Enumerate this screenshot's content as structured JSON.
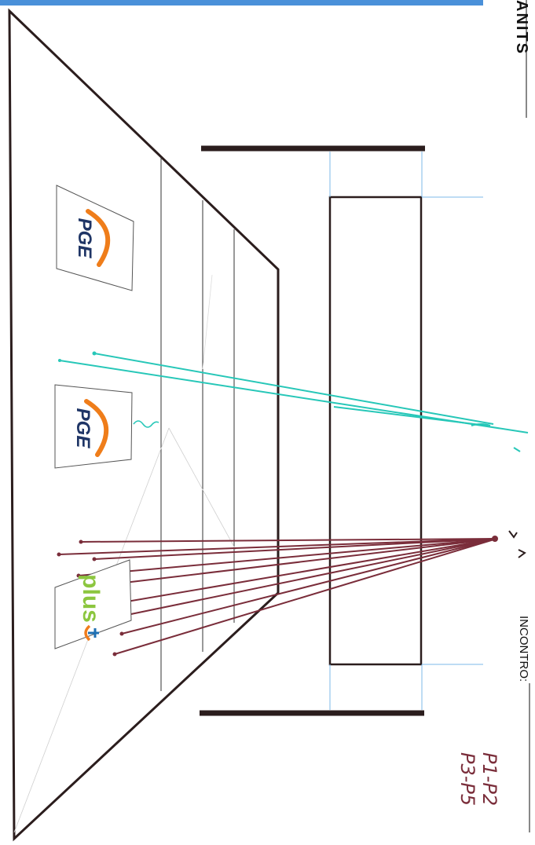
{
  "header_fragment": "ANITS",
  "field_label": "INCONTRO:",
  "handwritten_notes": [
    "P1-P2",
    "P3-P5"
  ],
  "logos": [
    {
      "name": "pge-logo-top",
      "text": "PGE"
    },
    {
      "name": "pge-logo-middle",
      "text": "PGE"
    },
    {
      "name": "plus-logo",
      "text": "plus"
    }
  ],
  "colors": {
    "header_bar": "#4a90d9",
    "outline": "#2b1d1d",
    "ray_teal": "#27c7b8",
    "ray_maroon": "#7a2d3a",
    "guide_blue": "#7db8e8",
    "pge_orange": "#ef7d1a",
    "pge_text": "#1f3566",
    "plus_green": "#8cc63f",
    "plus_orange": "#f07c1c",
    "plus_blue": "#1f6fb2"
  }
}
